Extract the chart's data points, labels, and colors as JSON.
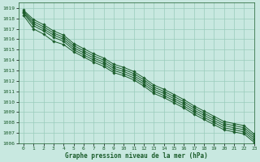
{
  "title": "Graphe pression niveau de la mer (hPa)",
  "xlim": [
    -0.5,
    23
  ],
  "ylim": [
    1006,
    1019.5
  ],
  "yticks": [
    1006,
    1007,
    1008,
    1009,
    1010,
    1011,
    1012,
    1013,
    1014,
    1015,
    1016,
    1017,
    1018,
    1019
  ],
  "xticks": [
    0,
    1,
    2,
    3,
    4,
    5,
    6,
    7,
    8,
    9,
    10,
    11,
    12,
    13,
    14,
    15,
    16,
    17,
    18,
    19,
    20,
    21,
    22,
    23
  ],
  "background_color": "#c8e8e0",
  "grid_color": "#99ccbb",
  "line_color": "#1a5c2a",
  "marker": "D",
  "marker_size": 1.8,
  "lines": [
    [
      1018.3,
      1017.0,
      1016.5,
      1015.8,
      1015.5,
      1014.8,
      1014.3,
      1013.8,
      1013.4,
      1012.8,
      1012.5,
      1012.1,
      1011.5,
      1010.8,
      1010.4,
      1009.9,
      1009.4,
      1008.8,
      1008.3,
      1007.8,
      1007.3,
      1007.1,
      1006.9,
      1006.1
    ],
    [
      1018.5,
      1017.3,
      1016.8,
      1016.2,
      1015.8,
      1015.0,
      1014.5,
      1014.0,
      1013.6,
      1013.0,
      1012.7,
      1012.3,
      1011.7,
      1011.0,
      1010.6,
      1010.1,
      1009.6,
      1009.0,
      1008.5,
      1008.0,
      1007.5,
      1007.3,
      1007.1,
      1006.3
    ],
    [
      1018.6,
      1017.5,
      1017.0,
      1016.4,
      1016.0,
      1015.2,
      1014.7,
      1014.2,
      1013.8,
      1013.2,
      1012.9,
      1012.5,
      1011.9,
      1011.2,
      1010.8,
      1010.3,
      1009.8,
      1009.2,
      1008.7,
      1008.2,
      1007.7,
      1007.5,
      1007.3,
      1006.5
    ],
    [
      1018.7,
      1017.7,
      1017.2,
      1016.6,
      1016.2,
      1015.4,
      1014.9,
      1014.4,
      1014.0,
      1013.4,
      1013.1,
      1012.7,
      1012.1,
      1011.4,
      1011.0,
      1010.5,
      1010.0,
      1009.4,
      1008.9,
      1008.4,
      1007.9,
      1007.7,
      1007.5,
      1006.7
    ],
    [
      1018.8,
      1017.9,
      1017.4,
      1016.8,
      1016.4,
      1015.6,
      1015.1,
      1014.6,
      1014.2,
      1013.6,
      1013.3,
      1012.9,
      1012.3,
      1011.6,
      1011.2,
      1010.7,
      1010.2,
      1009.6,
      1009.1,
      1008.6,
      1008.1,
      1007.9,
      1007.7,
      1006.9
    ]
  ]
}
